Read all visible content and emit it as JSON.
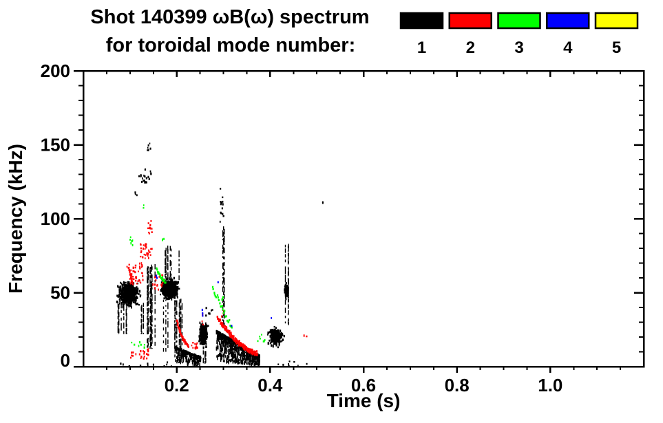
{
  "chart_data": {
    "type": "scatter",
    "title": {
      "line1": "Shot 140399 ωB(ω) spectrum",
      "line2": "for toroidal mode number:"
    },
    "legend": {
      "position": "top-right",
      "entries": [
        {
          "label": "1",
          "color": "#000000"
        },
        {
          "label": "2",
          "color": "#ff0000"
        },
        {
          "label": "3",
          "color": "#00ff00"
        },
        {
          "label": "4",
          "color": "#0000ff"
        },
        {
          "label": "5",
          "color": "#ffff00"
        }
      ]
    },
    "x_axis": {
      "label": "Time (s)",
      "range": [
        0,
        1.2
      ],
      "major_ticks": [
        0.2,
        0.4,
        0.6,
        0.8,
        1.0
      ],
      "major_tick_labels": [
        "0.2",
        "0.4",
        "0.6",
        "0.8",
        "1.0"
      ],
      "minor_tick_step": 0.05
    },
    "y_axis": {
      "label": "Frequency (kHz)",
      "range": [
        0,
        200
      ],
      "major_ticks": [
        0,
        50,
        100,
        150,
        200
      ],
      "major_tick_labels": [
        "0",
        "50",
        "100",
        "150",
        "200"
      ],
      "minor_tick_step": 10
    },
    "grid": false,
    "clusters": [
      {
        "mode": 1,
        "style": "blob",
        "t": [
          0.072,
          0.122
        ],
        "f": [
          40,
          58
        ],
        "n": 650
      },
      {
        "mode": 1,
        "style": "streaks",
        "t": [
          0.072,
          0.128
        ],
        "f": [
          22,
          44
        ],
        "n": 10
      },
      {
        "mode": 1,
        "style": "streaks",
        "t": [
          0.131,
          0.158
        ],
        "f": [
          12,
          70
        ],
        "n": 9
      },
      {
        "mode": 1,
        "style": "dots",
        "t": [
          0.118,
          0.146
        ],
        "f": [
          124,
          134
        ],
        "n": 22
      },
      {
        "mode": 1,
        "style": "dots",
        "t": [
          0.136,
          0.145
        ],
        "f": [
          146,
          152
        ],
        "n": 6
      },
      {
        "mode": 1,
        "style": "dots",
        "t": [
          0.105,
          0.115
        ],
        "f": [
          112,
          118
        ],
        "n": 3
      },
      {
        "mode": 1,
        "style": "blob",
        "t": [
          0.165,
          0.205
        ],
        "f": [
          45,
          60
        ],
        "n": 700
      },
      {
        "mode": 1,
        "style": "streaks",
        "t": [
          0.166,
          0.205
        ],
        "f": [
          58,
          82
        ],
        "n": 8
      },
      {
        "mode": 1,
        "style": "streaks",
        "t": [
          0.166,
          0.212
        ],
        "f": [
          10,
          46
        ],
        "n": 12
      },
      {
        "mode": 1,
        "style": "wedge",
        "t": [
          0.196,
          0.252
        ],
        "ftop": [
          13,
          6
        ],
        "fbot": [
          2.5,
          1
        ],
        "n": 260
      },
      {
        "mode": 1,
        "style": "blob",
        "t": [
          0.247,
          0.268
        ],
        "f": [
          13,
          31
        ],
        "n": 280
      },
      {
        "mode": 1,
        "style": "streaks",
        "t": [
          0.25,
          0.268
        ],
        "f": [
          2,
          13
        ],
        "n": 4
      },
      {
        "mode": 1,
        "style": "streaks",
        "t": [
          0.292,
          0.301
        ],
        "f": [
          26,
          95
        ],
        "n": 3
      },
      {
        "mode": 1,
        "style": "dots",
        "t": [
          0.293,
          0.3
        ],
        "f": [
          95,
          125
        ],
        "n": 14
      },
      {
        "mode": 1,
        "style": "wedge",
        "t": [
          0.285,
          0.378
        ],
        "ftop": [
          24,
          7
        ],
        "fbot": [
          4,
          0.5
        ],
        "n": 800
      },
      {
        "mode": 1,
        "style": "blob",
        "t": [
          0.395,
          0.43
        ],
        "f": [
          13,
          27
        ],
        "n": 260
      },
      {
        "mode": 1,
        "style": "streaks",
        "t": [
          0.431,
          0.44
        ],
        "f": [
          28,
          84
        ],
        "n": 3
      },
      {
        "mode": 1,
        "style": "blob",
        "t": [
          0.43,
          0.44
        ],
        "f": [
          45,
          57
        ],
        "n": 90
      },
      {
        "mode": 1,
        "style": "dots",
        "t": [
          0.405,
          0.48
        ],
        "f": [
          0.5,
          4
        ],
        "n": 8
      },
      {
        "mode": 1,
        "style": "dots",
        "t": [
          0.075,
          0.25
        ],
        "f": [
          0,
          3
        ],
        "n": 14
      },
      {
        "mode": 1,
        "style": "dots",
        "t": [
          0.512,
          0.518
        ],
        "f": [
          110,
          113
        ],
        "n": 2
      },
      {
        "mode": 1,
        "style": "dots",
        "t": [
          0.262,
          0.278
        ],
        "f": [
          33,
          40
        ],
        "n": 6
      },
      {
        "mode": 2,
        "style": "dots",
        "t": [
          0.092,
          0.128
        ],
        "f": [
          56,
          70
        ],
        "n": 40
      },
      {
        "mode": 2,
        "style": "arc",
        "t": [
          0.097,
          0.106
        ],
        "f": [
          57,
          67
        ],
        "n": 16,
        "curve": 1.4,
        "jitter": 1.5
      },
      {
        "mode": 2,
        "style": "dots",
        "t": [
          0.122,
          0.148
        ],
        "f": [
          73,
          83
        ],
        "n": 28
      },
      {
        "mode": 2,
        "style": "dots",
        "t": [
          0.138,
          0.147
        ],
        "f": [
          89,
          99
        ],
        "n": 10
      },
      {
        "mode": 2,
        "style": "dots",
        "t": [
          0.148,
          0.175
        ],
        "f": [
          52,
          62
        ],
        "n": 20
      },
      {
        "mode": 2,
        "style": "dots",
        "t": [
          0.1,
          0.14
        ],
        "f": [
          5,
          12
        ],
        "n": 22
      },
      {
        "mode": 2,
        "style": "arc",
        "t": [
          0.2,
          0.225
        ],
        "f": [
          14,
          31
        ],
        "n": 48,
        "curve": 1.6,
        "jitter": 1.2
      },
      {
        "mode": 2,
        "style": "dots",
        "t": [
          0.225,
          0.245
        ],
        "f": [
          12,
          17
        ],
        "n": 12
      },
      {
        "mode": 2,
        "style": "arc",
        "t": [
          0.287,
          0.372
        ],
        "f": [
          9,
          33
        ],
        "n": 160,
        "curve": 1.6,
        "jitter": 1.4
      },
      {
        "mode": 2,
        "style": "dots",
        "t": [
          0.295,
          0.301
        ],
        "f": [
          34,
          38
        ],
        "n": 3
      },
      {
        "mode": 2,
        "style": "dots",
        "t": [
          0.472,
          0.478
        ],
        "f": [
          19,
          22
        ],
        "n": 2
      },
      {
        "mode": 2,
        "style": "dots",
        "t": [
          0.252,
          0.262
        ],
        "f": [
          28,
          36
        ],
        "n": 4
      },
      {
        "mode": 3,
        "style": "arc",
        "t": [
          0.157,
          0.176
        ],
        "f": [
          57,
          66
        ],
        "n": 18,
        "curve": 1.3,
        "jitter": 1.2
      },
      {
        "mode": 3,
        "style": "dots",
        "t": [
          0.099,
          0.106
        ],
        "f": [
          82,
          88
        ],
        "n": 6
      },
      {
        "mode": 3,
        "style": "dots",
        "t": [
          0.169,
          0.174
        ],
        "f": [
          85,
          89
        ],
        "n": 3
      },
      {
        "mode": 3,
        "style": "dots",
        "t": [
          0.1,
          0.135
        ],
        "f": [
          13,
          17
        ],
        "n": 7
      },
      {
        "mode": 3,
        "style": "arc",
        "t": [
          0.277,
          0.318
        ],
        "f": [
          28,
          54
        ],
        "n": 26,
        "curve": 1.2,
        "jitter": 2
      },
      {
        "mode": 3,
        "style": "dots",
        "t": [
          0.373,
          0.39
        ],
        "f": [
          17,
          22
        ],
        "n": 7
      },
      {
        "mode": 3,
        "style": "dots",
        "t": [
          0.127,
          0.131
        ],
        "f": [
          107,
          111
        ],
        "n": 2
      },
      {
        "mode": 3,
        "style": "dots",
        "t": [
          0.296,
          0.3
        ],
        "f": [
          44,
          52
        ],
        "n": 4
      },
      {
        "mode": 4,
        "style": "dots",
        "t": [
          0.1555,
          0.1585
        ],
        "f": [
          60,
          63
        ],
        "n": 2
      },
      {
        "mode": 4,
        "style": "dots",
        "t": [
          0.254,
          0.261
        ],
        "f": [
          34,
          39
        ],
        "n": 3
      },
      {
        "mode": 4,
        "style": "dots",
        "t": [
          0.288,
          0.292
        ],
        "f": [
          55,
          57
        ],
        "n": 1
      },
      {
        "mode": 4,
        "style": "dots",
        "t": [
          0.399,
          0.403
        ],
        "f": [
          31,
          33
        ],
        "n": 1
      },
      {
        "mode": 4,
        "style": "dots",
        "t": [
          0.316,
          0.321
        ],
        "f": [
          25,
          28
        ],
        "n": 1
      }
    ]
  }
}
